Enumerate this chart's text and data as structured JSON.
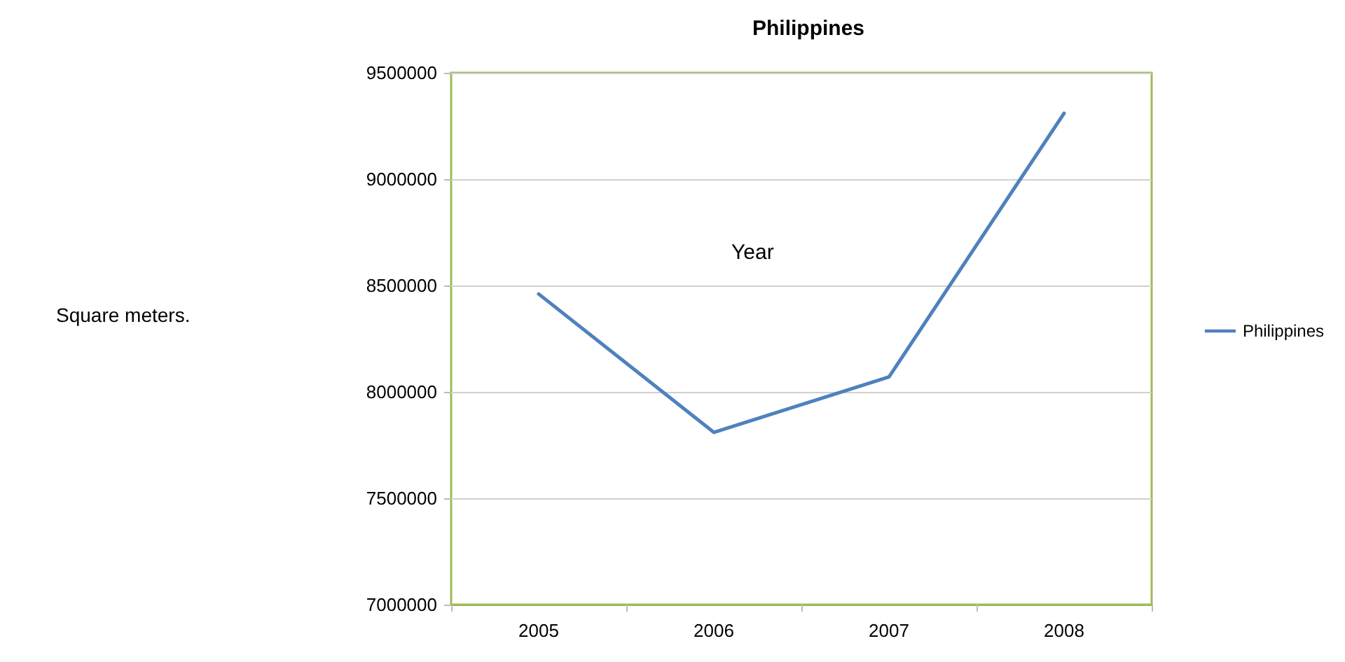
{
  "chart_data": {
    "type": "line",
    "title": "Philippines",
    "xlabel": "Year",
    "annotations": [
      "Square meters."
    ],
    "categories": [
      "2005",
      "2006",
      "2007",
      "2008"
    ],
    "series": [
      {
        "name": "Philippines",
        "color": "#4f81bd",
        "values": [
          8460000,
          7810000,
          8070000,
          9310000
        ]
      }
    ],
    "ylim": [
      7000000,
      9500000
    ],
    "yticks": [
      7000000,
      7500000,
      8000000,
      8500000,
      9000000,
      9500000
    ],
    "grid": "y",
    "legend": "right",
    "marker": "none",
    "line_style": "solid"
  }
}
